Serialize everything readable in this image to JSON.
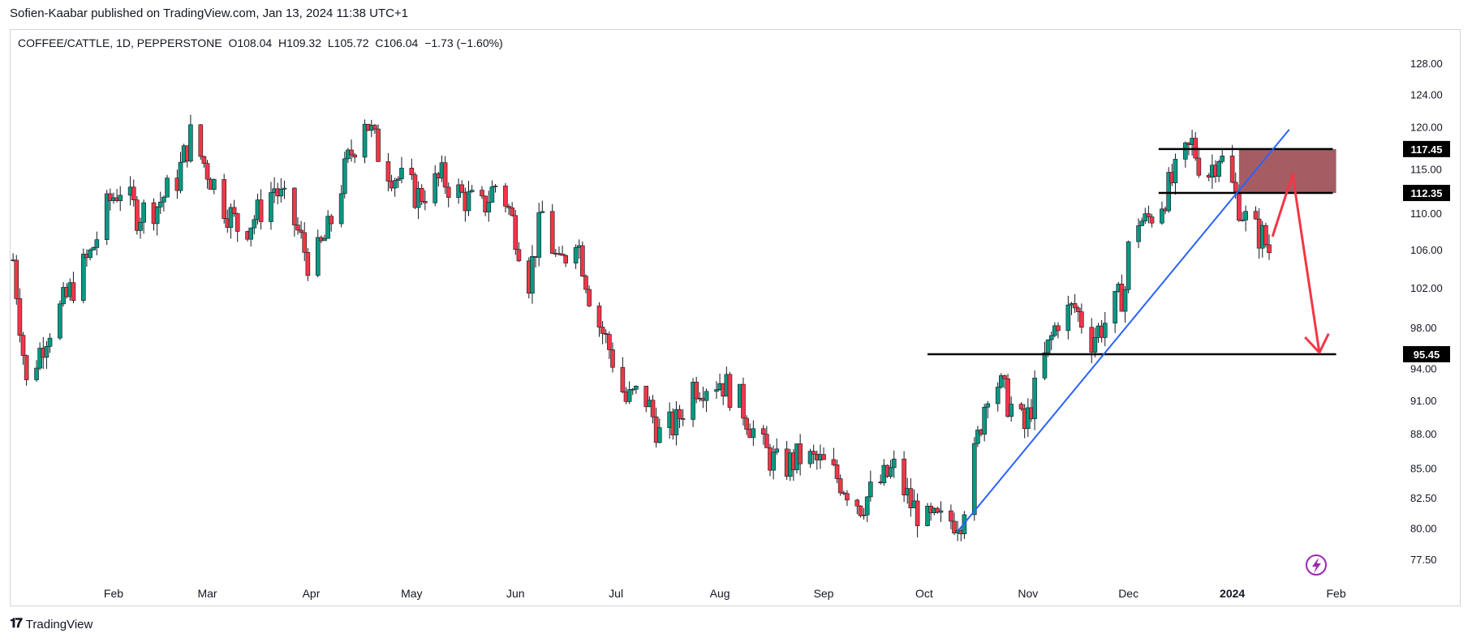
{
  "header": {
    "publisher": "Sofien-Kaabar published on TradingView.com, Jan 13, 2024 11:38 UTC+1"
  },
  "symbol": {
    "name": "COFFEE/CATTLE, 1D, PEPPERSTONE",
    "open": "O108.04",
    "high": "H109.32",
    "low": "L105.72",
    "close": "C106.04",
    "change": "−1.73 (−1.60%)"
  },
  "footer": {
    "brand": "TradingView"
  },
  "colors": {
    "up": "#089981",
    "down": "#f23645",
    "trendline": "#2962ff",
    "zone": "#9c4a52",
    "arrow": "#f23645",
    "level": "#000000"
  },
  "chart_data": {
    "type": "candlestick",
    "symbol": "COFFEE/CATTLE",
    "timeframe": "1D",
    "y_axis": {
      "scale": "log",
      "ticks": [
        77.5,
        80.0,
        82.5,
        85.0,
        88.0,
        91.0,
        94.0,
        98.0,
        102.0,
        106.0,
        110.0,
        115.0,
        120.0,
        124.0,
        128.0
      ],
      "ylim": [
        76.0,
        130.0
      ]
    },
    "x_axis": {
      "ticks": [
        "Feb",
        "Mar",
        "Apr",
        "May",
        "Jun",
        "Jul",
        "Aug",
        "Sep",
        "Oct",
        "Nov",
        "Dec",
        "2024",
        "Feb"
      ],
      "bold_ticks": [
        "2024"
      ],
      "tick_dates": [
        "2023-02-01",
        "2023-03-01",
        "2023-04-01",
        "2023-05-01",
        "2023-06-01",
        "2023-07-01",
        "2023-08-01",
        "2023-09-01",
        "2023-10-01",
        "2023-11-01",
        "2023-12-01",
        "2024-01-01",
        "2024-02-01"
      ],
      "range": [
        "2023-01-01",
        "2024-02-20"
      ]
    },
    "close_path": [
      [
        "2023-01-02",
        105.0
      ],
      [
        "2023-01-06",
        92.5
      ],
      [
        "2023-01-12",
        97.5
      ],
      [
        "2023-01-18",
        101.0
      ],
      [
        "2023-01-25",
        105.5
      ],
      [
        "2023-01-31",
        111.5
      ],
      [
        "2023-02-03",
        113.0
      ],
      [
        "2023-02-08",
        110.0
      ],
      [
        "2023-02-14",
        111.0
      ],
      [
        "2023-02-20",
        114.0
      ],
      [
        "2023-02-24",
        119.0
      ],
      [
        "2023-03-01",
        115.0
      ],
      [
        "2023-03-06",
        111.0
      ],
      [
        "2023-03-11",
        108.0
      ],
      [
        "2023-03-16",
        110.0
      ],
      [
        "2023-03-21",
        113.0
      ],
      [
        "2023-03-27",
        109.0
      ],
      [
        "2023-04-01",
        104.0
      ],
      [
        "2023-04-06",
        108.0
      ],
      [
        "2023-04-12",
        116.0
      ],
      [
        "2023-04-17",
        121.5
      ],
      [
        "2023-04-22",
        116.0
      ],
      [
        "2023-04-27",
        114.0
      ],
      [
        "2023-05-03",
        112.0
      ],
      [
        "2023-05-10",
        114.0
      ],
      [
        "2023-05-16",
        112.0
      ],
      [
        "2023-05-22",
        110.5
      ],
      [
        "2023-05-27",
        114.0
      ],
      [
        "2023-06-01",
        108.0
      ],
      [
        "2023-06-05",
        103.0
      ],
      [
        "2023-06-09",
        110.0
      ],
      [
        "2023-06-14",
        104.0
      ],
      [
        "2023-06-19",
        108.0
      ],
      [
        "2023-06-24",
        100.0
      ],
      [
        "2023-06-29",
        96.0
      ],
      [
        "2023-07-04",
        91.0
      ],
      [
        "2023-07-09",
        92.0
      ],
      [
        "2023-07-14",
        88.0
      ],
      [
        "2023-07-19",
        89.0
      ],
      [
        "2023-07-24",
        92.5
      ],
      [
        "2023-08-01",
        93.0
      ],
      [
        "2023-08-07",
        91.0
      ],
      [
        "2023-08-13",
        87.0
      ],
      [
        "2023-08-19",
        85.0
      ],
      [
        "2023-08-25",
        86.0
      ],
      [
        "2023-08-31",
        85.5
      ],
      [
        "2023-09-06",
        84.0
      ],
      [
        "2023-09-12",
        82.0
      ],
      [
        "2023-09-17",
        83.5
      ],
      [
        "2023-09-22",
        85.0
      ],
      [
        "2023-09-27",
        82.0
      ],
      [
        "2023-10-02",
        80.5
      ],
      [
        "2023-10-07",
        80.5
      ],
      [
        "2023-10-12",
        81.0
      ],
      [
        "2023-10-16",
        86.0
      ],
      [
        "2023-10-21",
        94.0
      ],
      [
        "2023-10-26",
        91.0
      ],
      [
        "2023-10-31",
        88.5
      ],
      [
        "2023-11-05",
        94.0
      ],
      [
        "2023-11-10",
        99.0
      ],
      [
        "2023-11-15",
        100.0
      ],
      [
        "2023-11-20",
        97.0
      ],
      [
        "2023-11-25",
        99.0
      ],
      [
        "2023-11-30",
        102.0
      ],
      [
        "2023-12-02",
        110.0
      ],
      [
        "2023-12-06",
        109.0
      ],
      [
        "2023-12-11",
        111.5
      ],
      [
        "2023-12-16",
        115.0
      ],
      [
        "2023-12-20",
        118.0
      ],
      [
        "2023-12-24",
        114.0
      ],
      [
        "2023-12-28",
        117.0
      ],
      [
        "2024-01-02",
        112.0
      ],
      [
        "2024-01-06",
        108.5
      ],
      [
        "2024-01-10",
        107.5
      ],
      [
        "2024-01-12",
        106.04
      ]
    ],
    "price_levels": [
      {
        "label": "117.45",
        "value": 117.45,
        "from": "2023-12-10",
        "to": "2024-01-31"
      },
      {
        "label": "112.35",
        "value": 112.35,
        "from": "2023-12-10",
        "to": "2024-01-31"
      },
      {
        "label": "95.45",
        "value": 95.45,
        "from": "2023-10-02",
        "to": "2024-02-01"
      }
    ],
    "supply_zone": {
      "top": 117.45,
      "bottom": 112.35,
      "from": "2024-01-03",
      "to": "2024-02-01"
    },
    "trendline": {
      "from": [
        "2023-10-11",
        79.8
      ],
      "to": [
        "2024-01-18",
        119.8
      ]
    },
    "projection_arrow": {
      "points": [
        [
          "2024-01-13",
          107.5
        ],
        [
          "2024-01-19",
          114.5
        ],
        [
          "2024-01-27",
          95.6
        ]
      ]
    }
  }
}
